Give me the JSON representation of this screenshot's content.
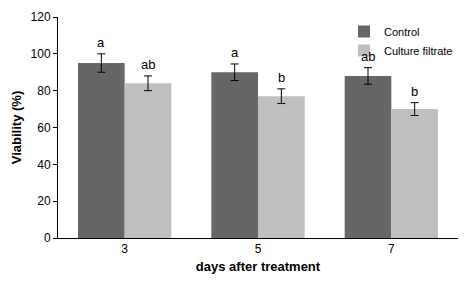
{
  "chart_data": {
    "type": "bar",
    "x_label": "days after treatment",
    "y_label": "Viability (%)",
    "categories": [
      "3",
      "5",
      "7"
    ],
    "series": [
      {
        "name": "Control",
        "color": "#666666",
        "values": [
          95,
          90,
          88
        ],
        "errors": [
          5,
          4.5,
          4.5
        ],
        "annotations": [
          "a",
          "a",
          "ab"
        ]
      },
      {
        "name": "Culture filtrate",
        "color": "#bfbfbf",
        "values": [
          84,
          77,
          70
        ],
        "errors": [
          4,
          4,
          3.5
        ],
        "annotations": [
          "ab",
          "b",
          "b"
        ]
      }
    ],
    "ylim": [
      0,
      120
    ],
    "yticks": [
      0,
      20,
      40,
      60,
      80,
      100,
      120
    ],
    "grid": false,
    "legend": "top-right"
  }
}
